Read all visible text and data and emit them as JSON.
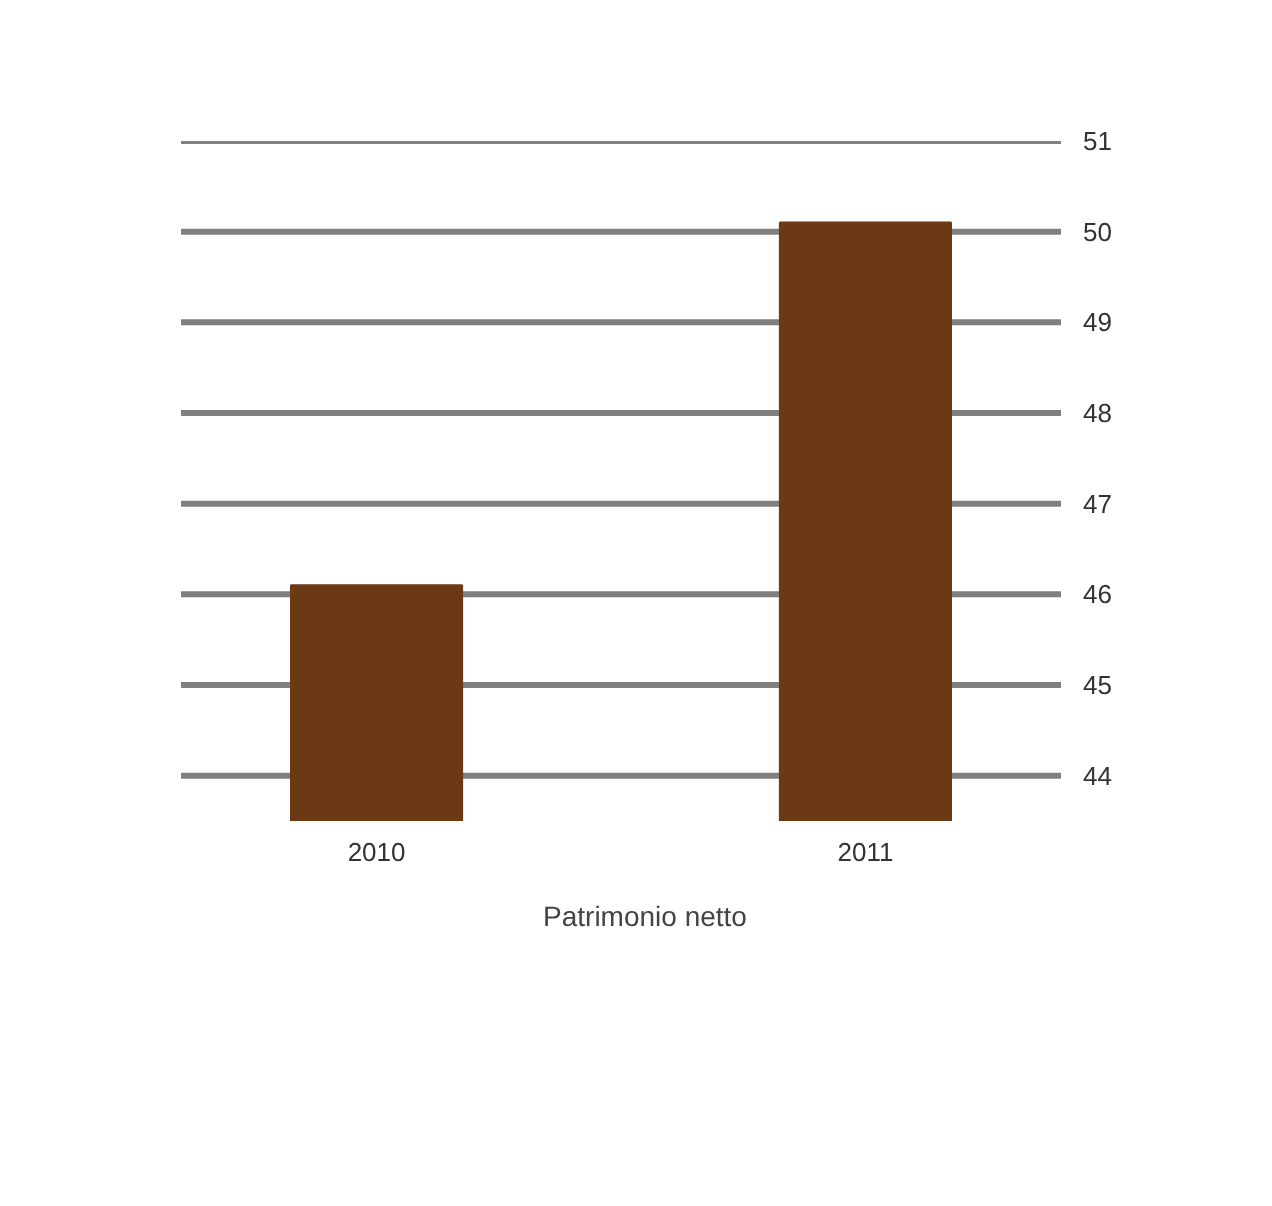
{
  "chart_data": {
    "type": "bar",
    "categories": [
      "2010",
      "2011"
    ],
    "series": [
      {
        "name": "Patrimonio netto",
        "color": "#6b3a14",
        "values": [
          46.1,
          50.1
        ]
      }
    ],
    "ylim": [
      43.5,
      51
    ],
    "yticks": [
      44,
      45,
      46,
      47,
      48,
      49,
      50,
      51
    ],
    "grid": "y",
    "legend": "bottom"
  }
}
